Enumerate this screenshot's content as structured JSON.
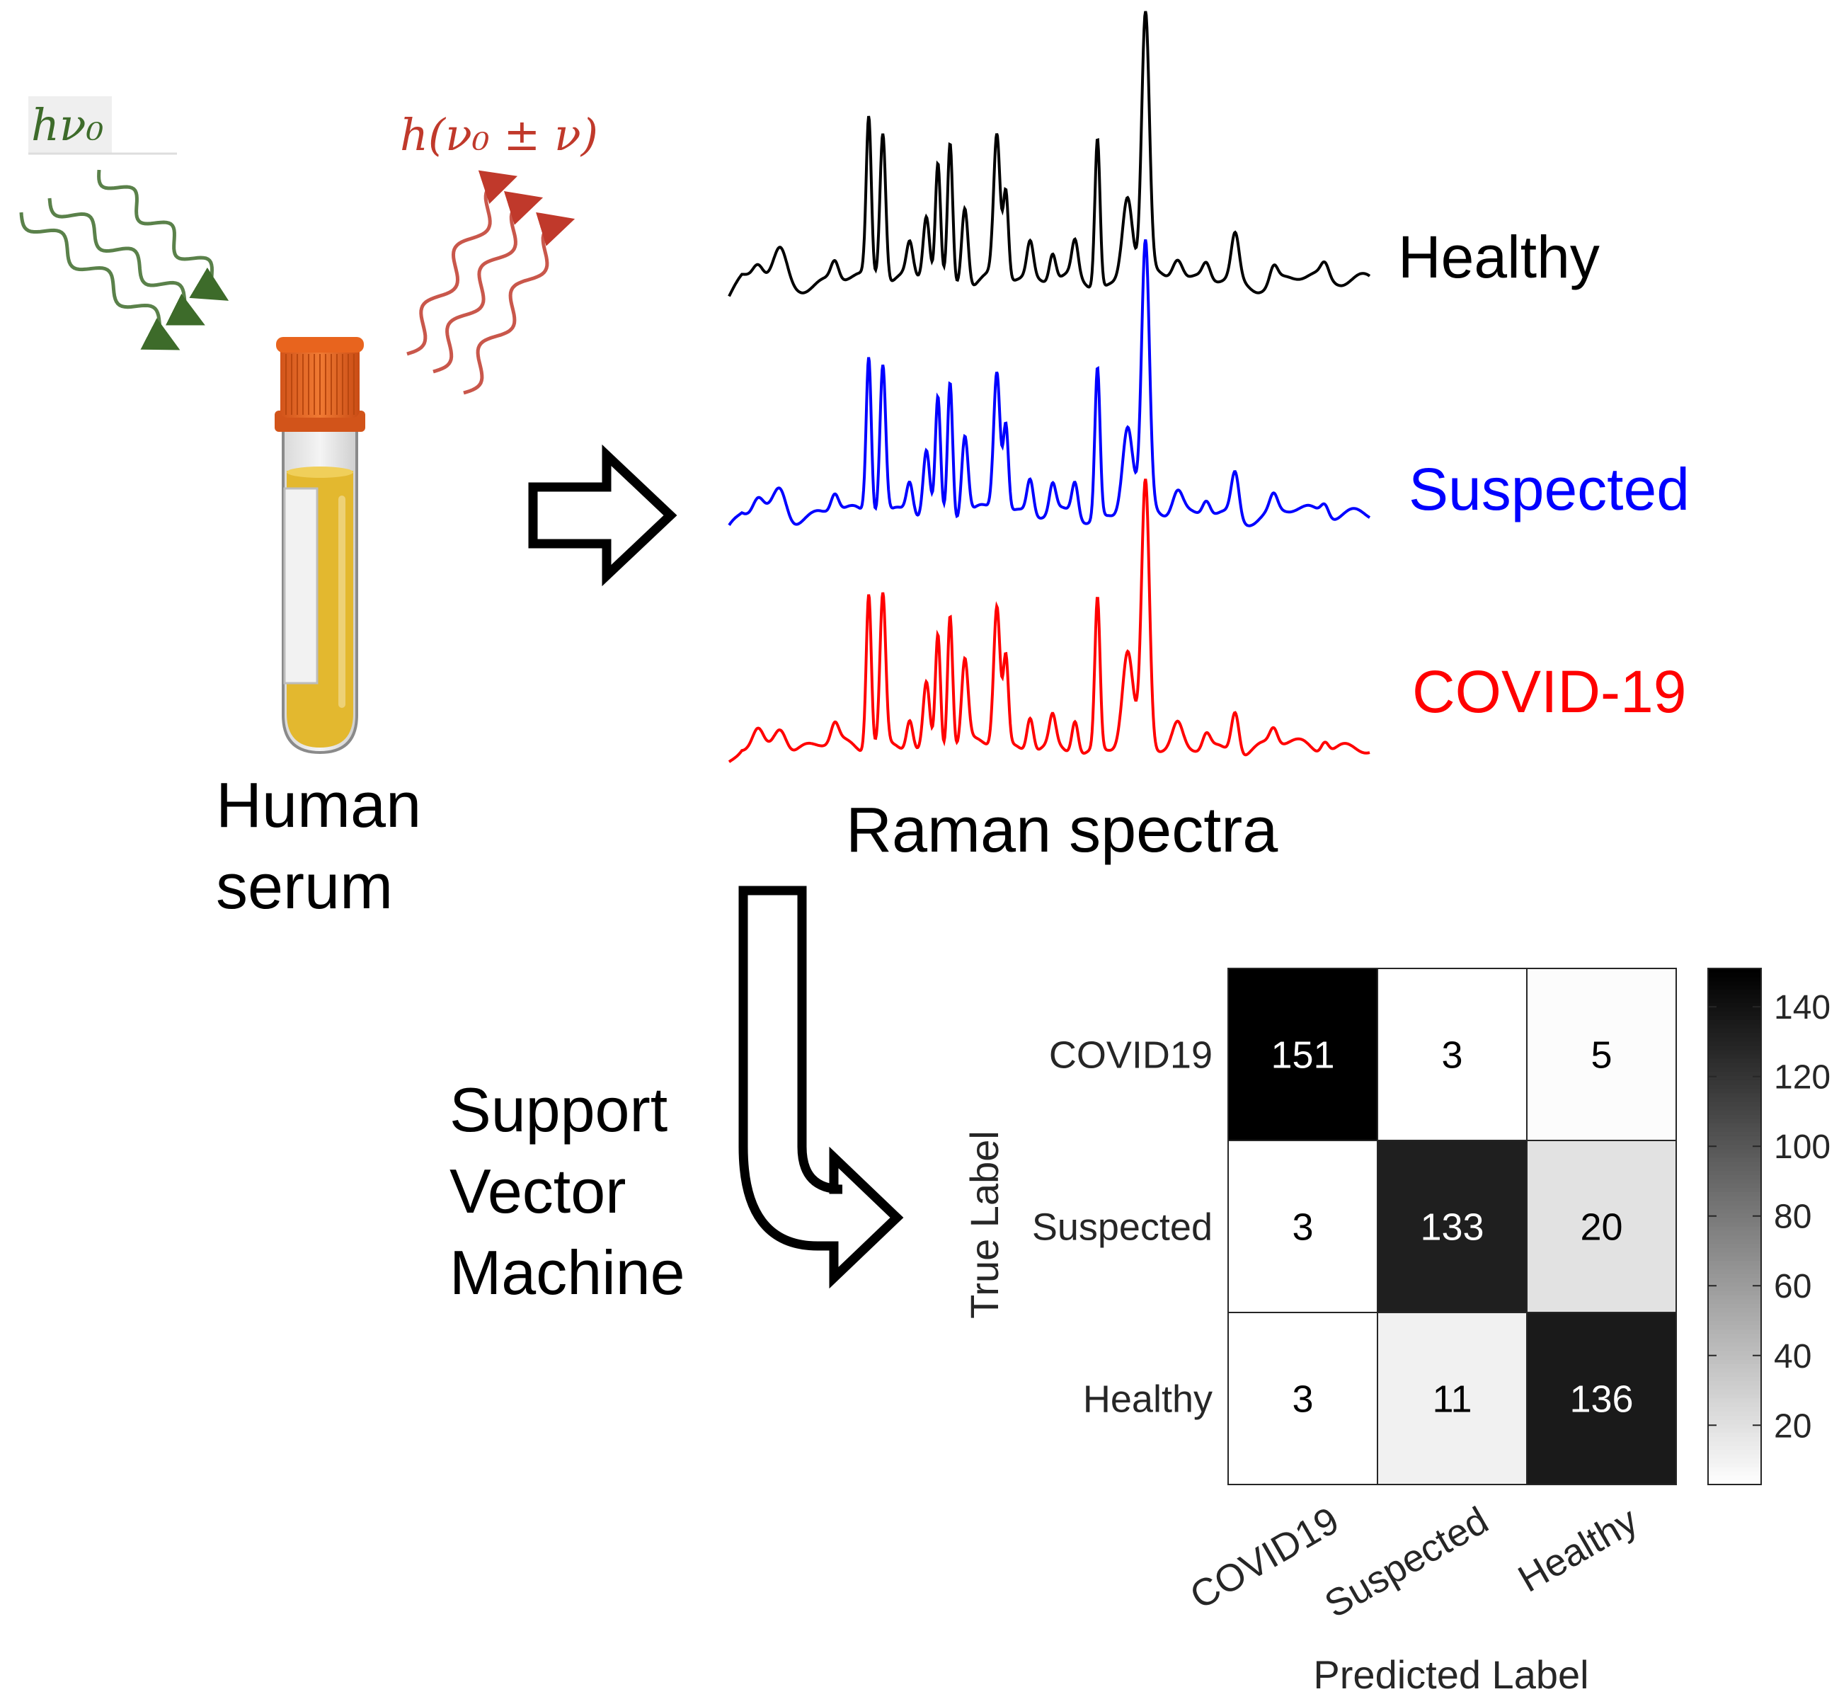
{
  "photon_labels": {
    "incident": "hν₀",
    "scattered": "h(ν₀ ± ν)"
  },
  "sample_label": {
    "line1": "Human",
    "line2": "serum"
  },
  "spectra_title": "Raman spectra",
  "spectra": [
    {
      "name": "Healthy",
      "color": "#000000"
    },
    {
      "name": "Suspected",
      "color": "#0000ff"
    },
    {
      "name": "COVID-19",
      "color": "#ff0000"
    }
  ],
  "method_label": {
    "line1": "Support",
    "line2": "Vector",
    "line3": "Machine"
  },
  "colors": {
    "incident_wave": "#3d6b2a",
    "scattered_wave": "#c0392b",
    "tube_cap": "#e8641e",
    "serum": "#e3b82f"
  },
  "chart_data": {
    "type": "heatmap",
    "xlabel": "Predicted Label",
    "ylabel": "True Label",
    "x_categories": [
      "COVID19",
      "Suspected",
      "Healthy"
    ],
    "y_categories": [
      "COVID19",
      "Suspected",
      "Healthy"
    ],
    "values": [
      [
        151,
        3,
        5
      ],
      [
        3,
        133,
        20
      ],
      [
        3,
        11,
        136
      ]
    ],
    "colorbar": {
      "min": 3,
      "max": 151,
      "ticks": [
        20,
        40,
        60,
        80,
        100,
        120,
        140
      ]
    }
  }
}
